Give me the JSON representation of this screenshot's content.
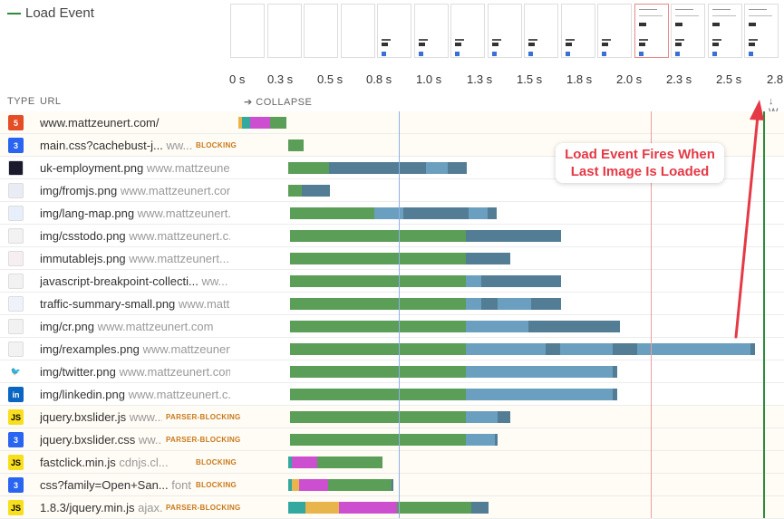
{
  "legend": {
    "load_event_label": "Load Event",
    "color": "#2e8b3a"
  },
  "filmstrip": {
    "frame_count": 15
  },
  "timeline": {
    "labels": [
      "0 s",
      "0.3 s",
      "0.5 s",
      "0.8 s",
      "1.0 s",
      "1.3 s",
      "1.5 s",
      "1.8 s",
      "2.0 s",
      "2.3 s",
      "2.5 s",
      "2.8"
    ]
  },
  "header": {
    "type": "TYPE",
    "url": "URL",
    "collapse": "➔ COLLAPSE",
    "right": "↓ W"
  },
  "annotation": {
    "line1": "Load Event Fires When",
    "line2": "Last Image Is Loaded"
  },
  "colors": {
    "dns": "#33a89f",
    "connect": "#e8b44c",
    "ssl": "#cc4fcf",
    "wait": "#5a9e57",
    "download": "#6a9fbf",
    "download_dark": "#527d95",
    "first_paint": "#8fb0e6",
    "load_event": "#2e8b3a",
    "dom_content": "#eaa0a0",
    "badge": "#c87a1a"
  },
  "rows": [
    {
      "name": "www.mattzeunert.com/",
      "domain": "",
      "badge": "",
      "icon": "html"
    },
    {
      "name": "main.css?cachebust-j...",
      "domain": "ww...",
      "badge": "BLOCKING",
      "icon": "css"
    },
    {
      "name": "uk-employment.png",
      "domain": "www.mattzeuner...",
      "badge": "",
      "icon": "img-dark"
    },
    {
      "name": "img/fromjs.png",
      "domain": "www.mattzeunert.com",
      "badge": "",
      "icon": "img-code"
    },
    {
      "name": "img/lang-map.png",
      "domain": "www.mattzeunert....",
      "badge": "",
      "icon": "img-map"
    },
    {
      "name": "img/csstodo.png",
      "domain": "www.mattzeunert.c...",
      "badge": "",
      "icon": "img-light"
    },
    {
      "name": "immutablejs.png",
      "domain": "www.mattzeunert....",
      "badge": "",
      "icon": "img-pink"
    },
    {
      "name": "javascript-breakpoint-collecti...",
      "domain": "ww...",
      "badge": "",
      "icon": "img-light"
    },
    {
      "name": "traffic-summary-small.png",
      "domain": "www.matt...",
      "badge": "",
      "icon": "img-chart"
    },
    {
      "name": "img/cr.png",
      "domain": "www.mattzeunert.com",
      "badge": "",
      "icon": "img-light"
    },
    {
      "name": "img/rexamples.png",
      "domain": "www.mattzeunert.com",
      "badge": "",
      "icon": "img-light"
    },
    {
      "name": "img/twitter.png",
      "domain": "www.mattzeunert.com",
      "badge": "",
      "icon": "twitter"
    },
    {
      "name": "img/linkedin.png",
      "domain": "www.mattzeunert.c...",
      "badge": "",
      "icon": "linkedin"
    },
    {
      "name": "jquery.bxslider.js",
      "domain": "www....",
      "badge": "PARSER-BLOCKING",
      "icon": "js"
    },
    {
      "name": "jquery.bxslider.css",
      "domain": "ww...",
      "badge": "PARSER-BLOCKING",
      "icon": "css"
    },
    {
      "name": "fastclick.min.js",
      "domain": "cdnjs.cl...",
      "badge": "BLOCKING",
      "icon": "js"
    },
    {
      "name": "css?family=Open+San...",
      "domain": "font...",
      "badge": "BLOCKING",
      "icon": "css"
    },
    {
      "name": "1.8.3/jquery.min.js",
      "domain": "ajax...",
      "badge": "PARSER-BLOCKING",
      "icon": "js"
    }
  ]
}
